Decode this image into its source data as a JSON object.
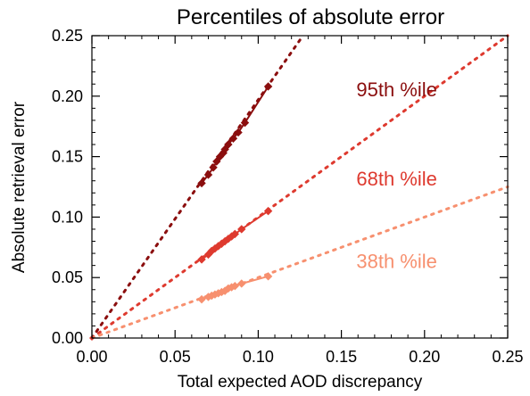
{
  "chart_data": {
    "type": "scatter",
    "title": "Percentiles of absolute error",
    "xlabel": "Total expected AOD discrepancy",
    "ylabel": "Absolute retrieval error",
    "xlim": [
      0.0,
      0.25
    ],
    "ylim": [
      0.0,
      0.25
    ],
    "xticks": [
      "0.00",
      "0.05",
      "0.10",
      "0.15",
      "0.20",
      "0.25"
    ],
    "yticks": [
      "0.00",
      "0.05",
      "0.10",
      "0.15",
      "0.20",
      "0.25"
    ],
    "grid": false,
    "series": [
      {
        "name": "95th %ile",
        "color": "#8b0e0e",
        "fit_slope": 1.97,
        "fit_intercept": 0,
        "x": [
          0.066,
          0.07,
          0.073,
          0.075,
          0.077,
          0.079,
          0.08,
          0.082,
          0.085,
          0.088,
          0.092,
          0.106
        ],
        "y": [
          0.128,
          0.135,
          0.141,
          0.146,
          0.15,
          0.153,
          0.156,
          0.16,
          0.165,
          0.17,
          0.178,
          0.208
        ]
      },
      {
        "name": "68th %ile",
        "color": "#de3a2f",
        "fit_slope": 1.0,
        "fit_intercept": 0,
        "x": [
          0.066,
          0.07,
          0.072,
          0.074,
          0.076,
          0.078,
          0.08,
          0.082,
          0.084,
          0.086,
          0.09,
          0.106
        ],
        "y": [
          0.065,
          0.069,
          0.072,
          0.074,
          0.076,
          0.078,
          0.08,
          0.082,
          0.084,
          0.086,
          0.09,
          0.105
        ]
      },
      {
        "name": "38th %ile",
        "color": "#f7906f",
        "fit_slope": 0.5,
        "fit_intercept": 0,
        "x": [
          0.066,
          0.07,
          0.072,
          0.074,
          0.076,
          0.078,
          0.08,
          0.082,
          0.084,
          0.086,
          0.09,
          0.106
        ],
        "y": [
          0.032,
          0.034,
          0.035,
          0.036,
          0.037,
          0.038,
          0.039,
          0.041,
          0.042,
          0.043,
          0.045,
          0.051
        ]
      }
    ],
    "annotations": [
      {
        "text": "95th %ile",
        "series": 0,
        "x": 0.159,
        "y": 0.2
      },
      {
        "text": "68th %ile",
        "series": 1,
        "x": 0.159,
        "y": 0.126
      },
      {
        "text": "38th %ile",
        "series": 2,
        "x": 0.159,
        "y": 0.058
      }
    ]
  }
}
